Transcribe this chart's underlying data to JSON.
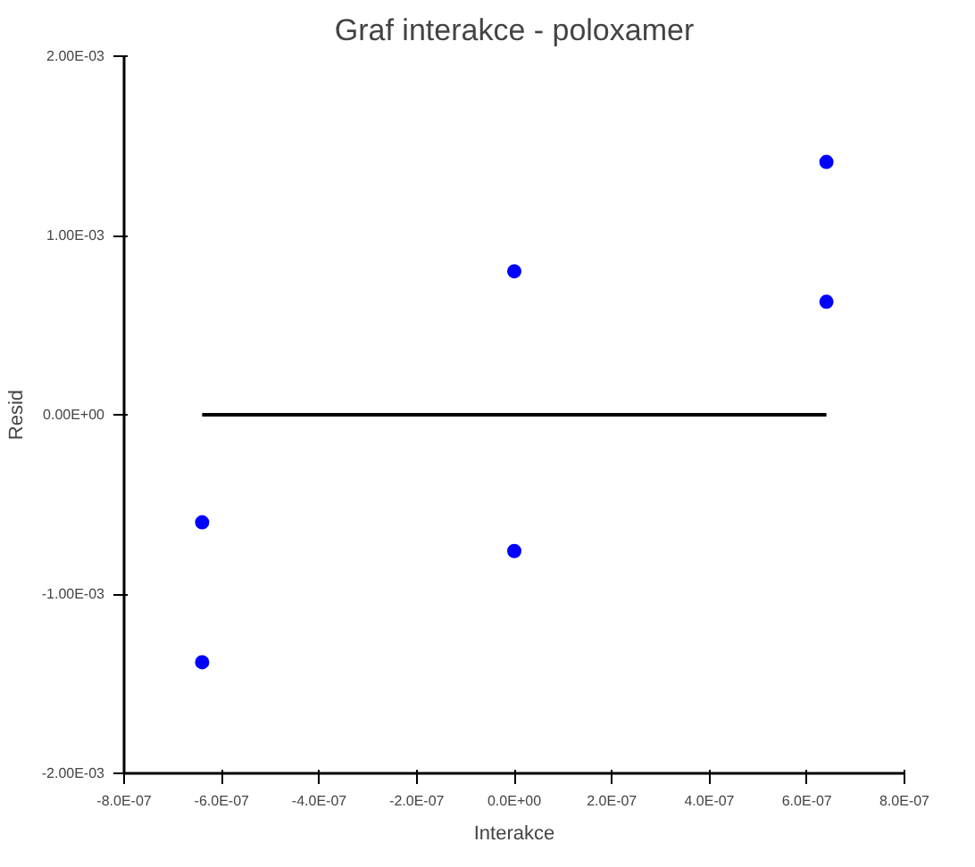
{
  "chart_data": {
    "type": "scatter",
    "title": "Graf interakce - poloxamer",
    "xlabel": "Interakce",
    "ylabel": "Resid",
    "x": [
      -6.4e-07,
      -6.4e-07,
      0,
      0,
      6.4e-07,
      6.4e-07
    ],
    "series": [
      {
        "marker": "circle",
        "color": "#0000ff",
        "values": [
          -0.0006,
          -0.00138,
          0.0008,
          -0.00076,
          0.00141,
          0.00063
        ]
      },
      {
        "type": "line",
        "color": "#000000",
        "x": [
          -6.4e-07,
          6.4e-07
        ],
        "values": [
          0,
          0
        ]
      }
    ],
    "grid": false,
    "xlim": [
      -8e-07,
      8e-07
    ],
    "ylim": [
      -0.002,
      0.002
    ],
    "xticks": [
      {
        "value": -8e-07,
        "label": "-8.0E-07"
      },
      {
        "value": -6e-07,
        "label": "-6.0E-07"
      },
      {
        "value": -4e-07,
        "label": "-4.0E-07"
      },
      {
        "value": -2e-07,
        "label": "-2.0E-07"
      },
      {
        "value": 0,
        "label": "0.0E+00"
      },
      {
        "value": 2e-07,
        "label": "2.0E-07"
      },
      {
        "value": 4e-07,
        "label": "4.0E-07"
      },
      {
        "value": 6e-07,
        "label": "6.0E-07"
      },
      {
        "value": 8e-07,
        "label": "8.0E-07"
      }
    ],
    "yticks": [
      {
        "value": -0.002,
        "label": "-2.00E-03"
      },
      {
        "value": -0.001,
        "label": "-1.00E-03"
      },
      {
        "value": 0,
        "label": "0.00E+00"
      },
      {
        "value": 0.001,
        "label": "1.00E-03"
      },
      {
        "value": 0.002,
        "label": "2.00E-03"
      }
    ]
  }
}
